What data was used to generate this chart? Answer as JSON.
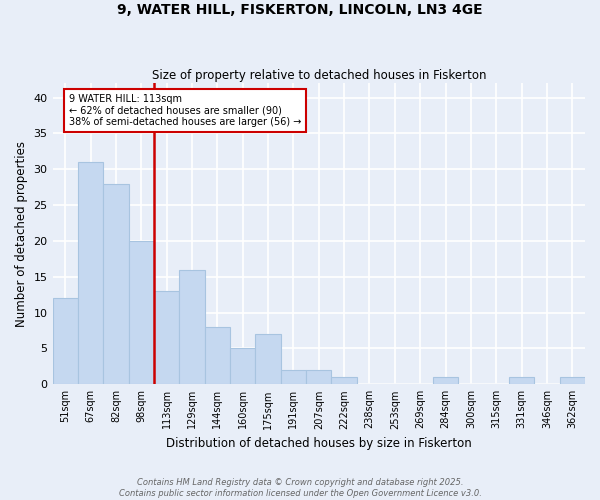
{
  "title": "9, WATER HILL, FISKERTON, LINCOLN, LN3 4GE",
  "subtitle": "Size of property relative to detached houses in Fiskerton",
  "xlabel": "Distribution of detached houses by size in Fiskerton",
  "ylabel": "Number of detached properties",
  "categories": [
    "51sqm",
    "67sqm",
    "82sqm",
    "98sqm",
    "113sqm",
    "129sqm",
    "144sqm",
    "160sqm",
    "175sqm",
    "191sqm",
    "207sqm",
    "222sqm",
    "238sqm",
    "253sqm",
    "269sqm",
    "284sqm",
    "300sqm",
    "315sqm",
    "331sqm",
    "346sqm",
    "362sqm"
  ],
  "values": [
    12,
    31,
    28,
    20,
    13,
    16,
    8,
    5,
    7,
    2,
    2,
    1,
    0,
    0,
    0,
    1,
    0,
    0,
    1,
    0,
    1
  ],
  "bar_color": "#c5d8f0",
  "bar_edgecolor": "#a8c4e0",
  "vline_color": "#cc0000",
  "ylim": [
    0,
    42
  ],
  "yticks": [
    0,
    5,
    10,
    15,
    20,
    25,
    30,
    35,
    40
  ],
  "annotation_text": "9 WATER HILL: 113sqm\n← 62% of detached houses are smaller (90)\n38% of semi-detached houses are larger (56) →",
  "annotation_box_facecolor": "#ffffff",
  "annotation_box_edgecolor": "#cc0000",
  "footer_line1": "Contains HM Land Registry data © Crown copyright and database right 2025.",
  "footer_line2": "Contains public sector information licensed under the Open Government Licence v3.0.",
  "background_color": "#e8eef8",
  "grid_color": "#ffffff"
}
